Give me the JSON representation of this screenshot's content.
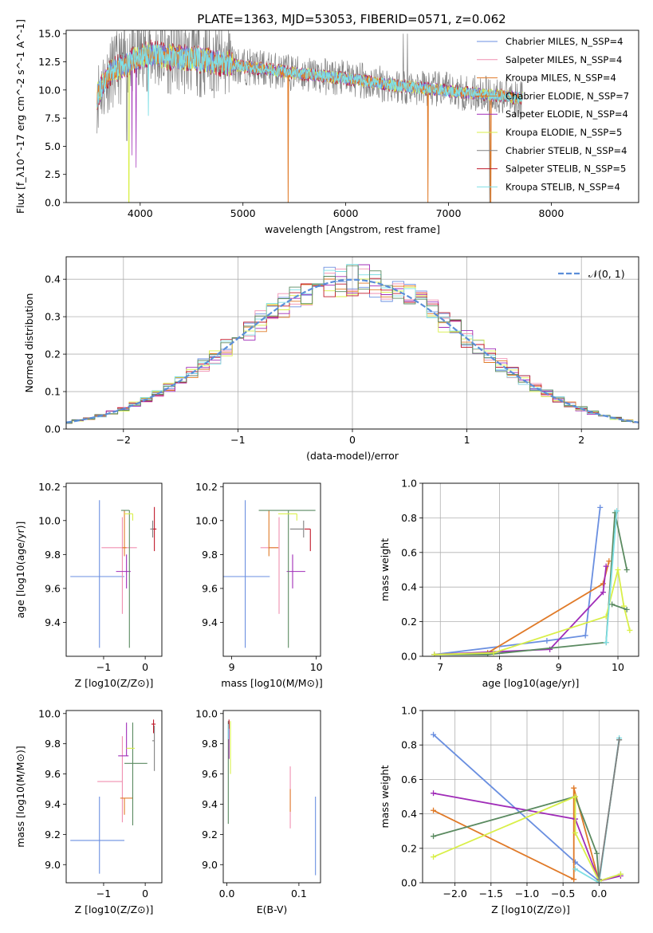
{
  "figure_title": "PLATE=1363, MJD=53053, FIBERID=0571, z=0.062",
  "colors": {
    "series": [
      "#6a8fe0",
      "#f08fb0",
      "#e07a28",
      "#e07a28",
      "#a02cb8",
      "#d9ef48",
      "#808080",
      "#c0182a",
      "#7fdfe6"
    ],
    "grid": "#b0b0b0",
    "gaussian": "#5b8ed8",
    "dark_green": "#5a8a60"
  },
  "chart_data": [
    {
      "id": "spectrum",
      "type": "line",
      "xlabel": "wavelength [Angstrom, rest frame]",
      "ylabel": "Flux [f_λ10^-17 erg cm^-2 s^-1 A^-1]",
      "xlim": [
        3280,
        8850
      ],
      "ylim": [
        0,
        15.3
      ],
      "xticks": [
        "4000",
        "5000",
        "6000",
        "7000",
        "8000"
      ],
      "yticks": [
        "0.0",
        "2.5",
        "5.0",
        "7.5",
        "10.0",
        "12.5",
        "15.0"
      ],
      "grid": false,
      "legend_position": "upper-right",
      "series": [
        {
          "name": "Chabrier MILES, N_SSP=4"
        },
        {
          "name": "Salpeter MILES, N_SSP=4"
        },
        {
          "name": "Kroupa MILES, N_SSP=4"
        },
        {
          "name": "Chabrier ELODIE, N_SSP=7"
        },
        {
          "name": "Salpeter ELODIE, N_SSP=4"
        },
        {
          "name": "Kroupa ELODIE, N_SSP=5"
        },
        {
          "name": "Chabrier STELIB, N_SSP=4"
        },
        {
          "name": "Salpeter STELIB, N_SSP=5"
        },
        {
          "name": "Kroupa STELIB, N_SSP=4"
        }
      ],
      "continuum": {
        "x": [
          3580,
          3700,
          3900,
          4100,
          4300,
          4600,
          5000,
          5500,
          6000,
          6500,
          7000,
          7500,
          7700
        ],
        "y": [
          9.5,
          11.5,
          12.5,
          13.2,
          12.9,
          12.7,
          12.1,
          11.5,
          11.0,
          10.4,
          9.9,
          9.5,
          9.3
        ]
      }
    },
    {
      "id": "residuals",
      "type": "histogram",
      "xlabel": "(data-model)/error",
      "ylabel": "Normed distribution",
      "xlim": [
        -2.5,
        2.5
      ],
      "ylim": [
        0,
        0.46
      ],
      "xticks": [
        "−2",
        "−1",
        "0",
        "1",
        "2"
      ],
      "yticks": [
        "0.0",
        "0.1",
        "0.2",
        "0.3",
        "0.4"
      ],
      "grid": true,
      "legend_position": "upper-right",
      "legend": "𝒩(0, 1)"
    },
    {
      "id": "age-vs-Z",
      "type": "scatter",
      "xlabel": "Z [log10(Z/Z⊙)]",
      "ylabel": "age  [log10(age/yr)]",
      "xlim": [
        -1.9,
        0.4
      ],
      "ylim": [
        9.2,
        10.22
      ],
      "xticks": [
        "−1",
        "0"
      ],
      "yticks": [
        "9.4",
        "9.6",
        "9.8",
        "10.0",
        "10.2"
      ],
      "points": [
        {
          "x": -1.1,
          "y": 9.67,
          "xerr": [
            0.7,
            0.6
          ],
          "yerr": [
            0.42,
            0.45
          ],
          "color": "#6a8fe0"
        },
        {
          "x": -0.55,
          "y": 9.84,
          "xerr": [
            0.5,
            0.35
          ],
          "yerr": [
            0.39,
            0.18
          ],
          "color": "#f08fb0"
        },
        {
          "x": -0.5,
          "y": 9.84,
          "xerr": [
            0.05,
            0.05
          ],
          "yerr": [
            0.05,
            0.22
          ],
          "color": "#e07a28"
        },
        {
          "x": -0.45,
          "y": 9.7,
          "xerr": [
            0.25,
            0.1
          ],
          "yerr": [
            0.1,
            0.1
          ],
          "color": "#a02cb8"
        },
        {
          "x": -0.38,
          "y": 10.06,
          "xerr": [
            0.2,
            0.0
          ],
          "yerr": [
            0.81,
            0.0
          ],
          "color": "#5a8a60"
        },
        {
          "x": -0.3,
          "y": 10.04,
          "xerr": [
            0.2,
            0.0
          ],
          "yerr": [
            0.04,
            0.0
          ],
          "color": "#d9ef48"
        },
        {
          "x": 0.22,
          "y": 9.95,
          "xerr": [
            0.06,
            0.05
          ],
          "yerr": [
            0.13,
            0.13
          ],
          "color": "#c0182a"
        },
        {
          "x": 0.18,
          "y": 9.95,
          "xerr": [
            0.06,
            0.0
          ],
          "yerr": [
            0.05,
            0.05
          ],
          "color": "#808080"
        }
      ]
    },
    {
      "id": "age-vs-mass",
      "type": "scatter",
      "xlabel": "mass [log10(M/M⊙)]",
      "ylabel": "",
      "xlim": [
        8.9,
        10.05
      ],
      "ylim": [
        9.2,
        10.22
      ],
      "xticks": [
        "9",
        "10"
      ],
      "yticks": [
        "9.4",
        "9.6",
        "9.8",
        "10.0",
        "10.2"
      ],
      "points": [
        {
          "x": 9.16,
          "y": 9.67,
          "xerr": [
            0.27,
            0.29
          ],
          "yerr": [
            0.42,
            0.45
          ],
          "color": "#6a8fe0"
        },
        {
          "x": 9.56,
          "y": 9.84,
          "xerr": [
            0.22,
            0.0
          ],
          "yerr": [
            0.39,
            0.18
          ],
          "color": "#f08fb0"
        },
        {
          "x": 9.44,
          "y": 9.84,
          "xerr": [
            0.0,
            0.11
          ],
          "yerr": [
            0.05,
            0.22
          ],
          "color": "#e07a28"
        },
        {
          "x": 9.72,
          "y": 9.7,
          "xerr": [
            0.07,
            0.15
          ],
          "yerr": [
            0.1,
            0.1
          ],
          "color": "#a02cb8"
        },
        {
          "x": 9.67,
          "y": 10.06,
          "xerr": [
            0.35,
            0.32
          ],
          "yerr": [
            0.81,
            0.0
          ],
          "color": "#5a8a60"
        },
        {
          "x": 9.77,
          "y": 10.04,
          "xerr": [
            0.22,
            0.0
          ],
          "yerr": [
            0.04,
            0.0
          ],
          "color": "#d9ef48"
        },
        {
          "x": 9.93,
          "y": 9.95,
          "xerr": [
            0.07,
            0.0
          ],
          "yerr": [
            0.13,
            0.0
          ],
          "color": "#c0182a"
        },
        {
          "x": 9.85,
          "y": 9.95,
          "xerr": [
            0.16,
            0.0
          ],
          "yerr": [
            0.05,
            0.05
          ],
          "color": "#808080"
        }
      ]
    },
    {
      "id": "massweight-vs-age",
      "type": "line",
      "xlabel": "age  [log10(age/yr)]",
      "ylabel": "mass weight",
      "xlim": [
        6.7,
        10.35
      ],
      "ylim": [
        0,
        1.0
      ],
      "xticks": [
        "7",
        "8",
        "9",
        "10"
      ],
      "yticks": [
        "0.0",
        "0.2",
        "0.4",
        "0.6",
        "0.8",
        "1.0"
      ],
      "grid": true,
      "series": [
        {
          "color": "#6a8fe0",
          "x": [
            6.9,
            8.8,
            9.45,
            9.7
          ],
          "y": [
            0.01,
            0.09,
            0.12,
            0.86
          ]
        },
        {
          "color": "#e07a28",
          "x": [
            6.9,
            7.8,
            9.75,
            9.85
          ],
          "y": [
            0.01,
            0.02,
            0.42,
            0.55
          ]
        },
        {
          "color": "#a02cb8",
          "x": [
            6.9,
            8.85,
            9.75,
            9.8
          ],
          "y": [
            0.01,
            0.04,
            0.37,
            0.52
          ]
        },
        {
          "color": "#5a8a60",
          "x": [
            6.9,
            7.8,
            9.8,
            9.95,
            10.15
          ],
          "y": [
            0.01,
            0.01,
            0.08,
            0.83,
            0.5
          ]
        },
        {
          "color": "#d9ef48",
          "x": [
            6.9,
            7.9,
            9.8,
            10.0,
            10.1,
            10.2
          ],
          "y": [
            0.01,
            0.02,
            0.23,
            0.5,
            0.29,
            0.15
          ]
        },
        {
          "color": "#7fdfe6",
          "x": [
            9.8,
            9.98
          ],
          "y": [
            0.08,
            0.84
          ]
        },
        {
          "color": "#5a8a60",
          "x": [
            9.9,
            10.15
          ],
          "y": [
            0.3,
            0.27
          ]
        }
      ]
    },
    {
      "id": "mass-vs-Z",
      "type": "scatter",
      "xlabel": "Z [log10(Z/Z⊙)]",
      "ylabel": "mass [log10(M/M⊙)]",
      "xlim": [
        -1.9,
        0.4
      ],
      "ylim": [
        8.88,
        10.02
      ],
      "xticks": [
        "−1",
        "0"
      ],
      "yticks": [
        "9.0",
        "9.2",
        "9.4",
        "9.6",
        "9.8",
        "10.0"
      ],
      "points": [
        {
          "x": -1.1,
          "y": 9.16,
          "xerr": [
            0.7,
            0.6
          ],
          "yerr": [
            0.22,
            0.29
          ],
          "color": "#6a8fe0"
        },
        {
          "x": -0.55,
          "y": 9.55,
          "xerr": [
            0.6,
            0.0
          ],
          "yerr": [
            0.27,
            0.3
          ],
          "color": "#f08fb0"
        },
        {
          "x": -0.5,
          "y": 9.44,
          "xerr": [
            0.1,
            0.2
          ],
          "yerr": [
            0.11,
            0.0
          ],
          "color": "#e07a28"
        },
        {
          "x": -0.45,
          "y": 9.72,
          "xerr": [
            0.2,
            0.05
          ],
          "yerr": [
            0.0,
            0.22
          ],
          "color": "#a02cb8"
        },
        {
          "x": -0.3,
          "y": 9.67,
          "xerr": [
            0.2,
            0.35
          ],
          "yerr": [
            0.41,
            0.27
          ],
          "color": "#5a8a60"
        },
        {
          "x": -0.25,
          "y": 9.77,
          "xerr": [
            0.2,
            0.0
          ],
          "yerr": [
            0.0,
            0.0
          ],
          "color": "#d9ef48"
        },
        {
          "x": 0.2,
          "y": 9.93,
          "xerr": [
            0.05,
            0.05
          ],
          "yerr": [
            0.06,
            0.03
          ],
          "color": "#c0182a"
        },
        {
          "x": 0.22,
          "y": 9.82,
          "xerr": [
            0.05,
            0.0
          ],
          "yerr": [
            0.2,
            0.1
          ],
          "color": "#808080"
        }
      ]
    },
    {
      "id": "mass-vs-ebv",
      "type": "scatter",
      "xlabel": "E(B-V)",
      "ylabel": "",
      "xlim": [
        -0.005,
        0.13
      ],
      "ylim": [
        8.88,
        10.02
      ],
      "xticks": [
        "0.0",
        "0.1"
      ],
      "yticks": [
        "9.0",
        "9.2",
        "9.4",
        "9.6",
        "9.8",
        "10.0"
      ],
      "points": [
        {
          "x": 0.123,
          "y": 9.2,
          "yerr": [
            0.27,
            0.25
          ],
          "color": "#6a8fe0"
        },
        {
          "x": 0.088,
          "y": 9.5,
          "yerr": [
            0.26,
            0.15
          ],
          "color": "#f08fb0"
        },
        {
          "x": 0.088,
          "y": 9.45,
          "yerr": [
            0.1,
            0.05
          ],
          "color": "#e07a28"
        },
        {
          "x": 0.002,
          "y": 9.6,
          "yerr": [
            0.33,
            0.35
          ],
          "color": "#5a8a60"
        },
        {
          "x": 0.003,
          "y": 9.85,
          "yerr": [
            0.15,
            0.1
          ],
          "color": "#a02cb8"
        },
        {
          "x": 0.005,
          "y": 9.8,
          "yerr": [
            0.2,
            0.15
          ],
          "color": "#d9ef48"
        },
        {
          "x": 0.003,
          "y": 9.93,
          "yerr": [
            0.03,
            0.03
          ],
          "color": "#c0182a"
        },
        {
          "x": 0.002,
          "y": 9.88,
          "yerr": [
            0.05,
            0.05
          ],
          "color": "#7fdfe6"
        }
      ]
    },
    {
      "id": "massweight-vs-Z",
      "type": "line",
      "xlabel": "Z [log10(Z/Z⊙)]",
      "ylabel": "mass weight",
      "xlim": [
        -2.45,
        0.55
      ],
      "ylim": [
        0,
        1.0
      ],
      "xticks": [
        "−2.0",
        "−1.5",
        "−1.0",
        "−0.5",
        "0.0"
      ],
      "yticks": [
        "0.0",
        "0.2",
        "0.4",
        "0.6",
        "0.8",
        "1.0"
      ],
      "grid": true,
      "series": [
        {
          "color": "#6a8fe0",
          "x": [
            -2.3,
            -0.33,
            0.0,
            0.3
          ],
          "y": [
            0.86,
            0.12,
            0.01,
            0.05
          ]
        },
        {
          "color": "#e07a28",
          "x": [
            -2.3,
            -0.35,
            -0.35,
            0.0
          ],
          "y": [
            0.42,
            0.02,
            0.55,
            0.01
          ]
        },
        {
          "color": "#a02cb8",
          "x": [
            -2.3,
            -0.33,
            0.0,
            0.3
          ],
          "y": [
            0.52,
            0.37,
            0.01,
            0.04
          ]
        },
        {
          "color": "#5a8a60",
          "x": [
            -2.3,
            -0.33,
            -0.03,
            0.0,
            0.28
          ],
          "y": [
            0.27,
            0.5,
            0.17,
            0.01,
            0.83
          ]
        },
        {
          "color": "#d9ef48",
          "x": [
            -2.3,
            -0.33,
            -0.33,
            0.0,
            0.3
          ],
          "y": [
            0.15,
            0.5,
            0.29,
            0.01,
            0.05
          ]
        },
        {
          "color": "#7fdfe6",
          "x": [
            -0.33,
            0.0,
            0.28
          ],
          "y": [
            0.08,
            0.0,
            0.84
          ]
        },
        {
          "color": "#808080",
          "x": [
            0.0,
            0.28
          ],
          "y": [
            0.02,
            0.83
          ]
        }
      ]
    }
  ]
}
